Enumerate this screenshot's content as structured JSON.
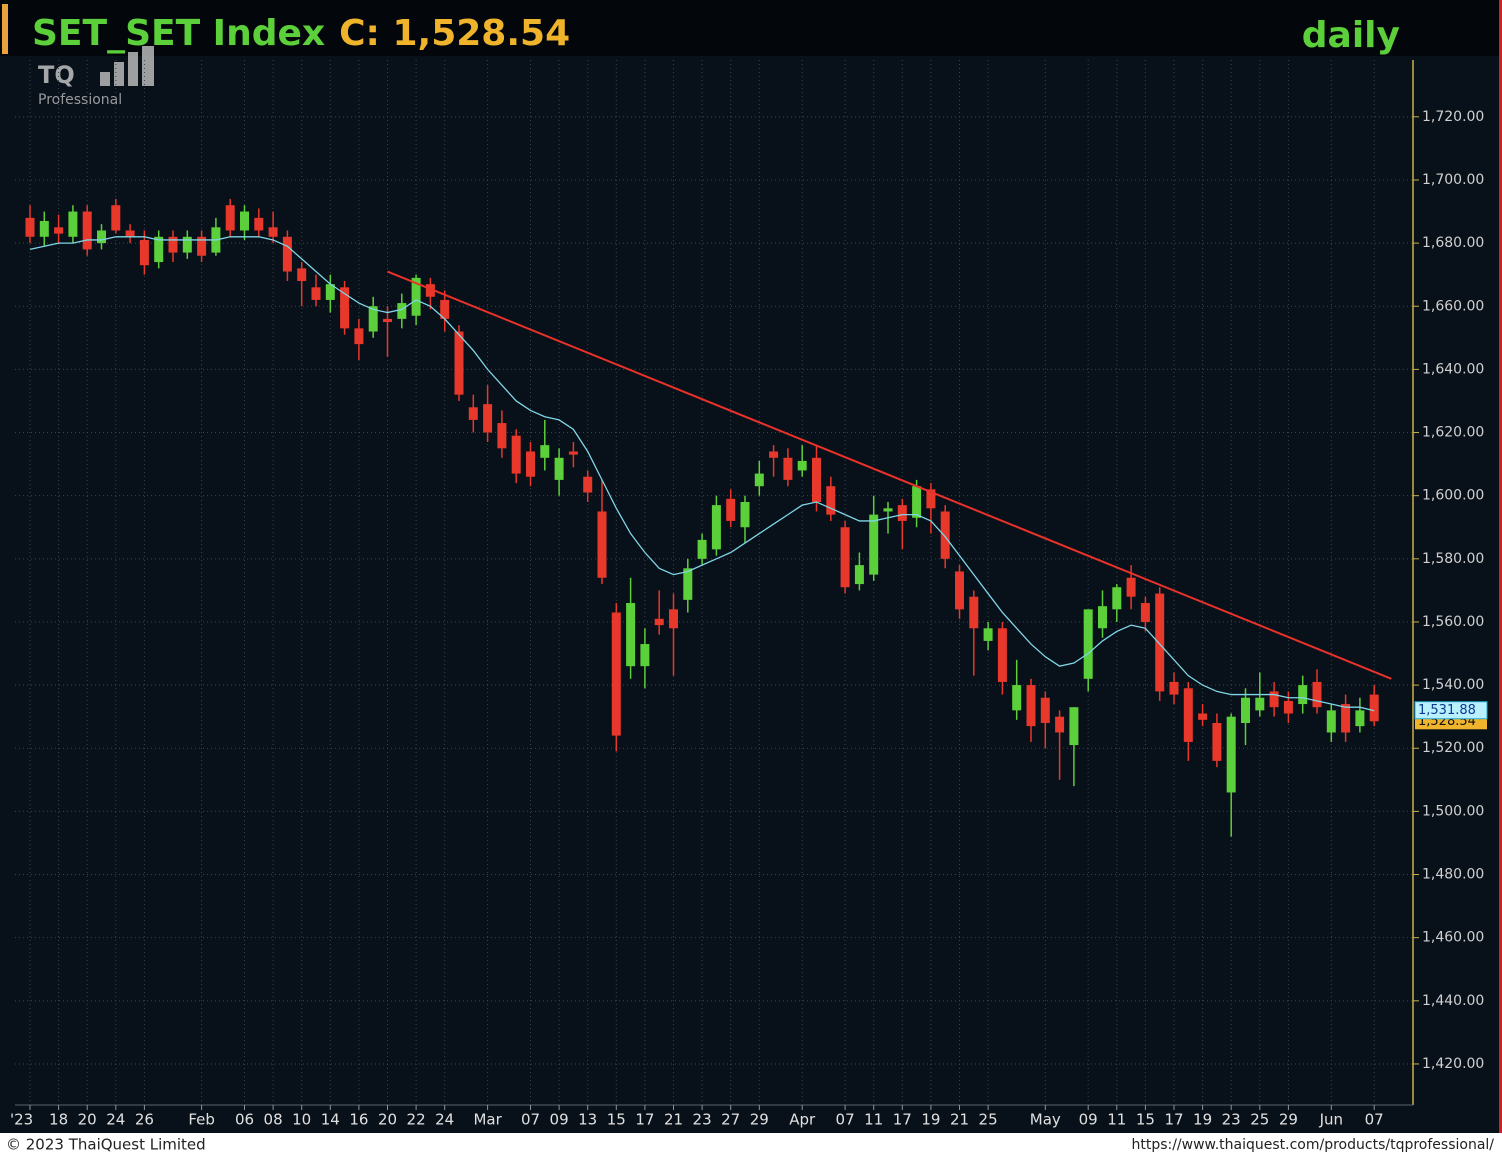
{
  "chart_data": {
    "type": "candlestick",
    "title": "SET_SET Index",
    "title_close": "C: 1,528.54",
    "period": "daily",
    "logo": {
      "mark": "TQ",
      "sub": "Professional"
    },
    "footer_left": "© 2023 ThaiQuest Limited",
    "footer_right": "https://www.thaiquest.com/products/tqprofessional/",
    "categories": [
      "'23",
      null,
      "18",
      null,
      "20",
      null,
      "24",
      null,
      "26",
      null,
      null,
      null,
      "Feb",
      null,
      null,
      "06",
      null,
      "08",
      null,
      "10",
      null,
      "14",
      null,
      "16",
      null,
      "20",
      null,
      "22",
      null,
      "24",
      null,
      null,
      "Mar",
      null,
      null,
      "07",
      null,
      "09",
      null,
      "13",
      null,
      "15",
      null,
      "17",
      null,
      "21",
      null,
      "23",
      null,
      "27",
      null,
      "29",
      null,
      null,
      "Apr",
      null,
      null,
      "07",
      null,
      "11",
      null,
      "17",
      null,
      "19",
      null,
      "21",
      null,
      "25",
      null,
      null,
      null,
      "May",
      null,
      null,
      "09",
      null,
      "11",
      null,
      "15",
      null,
      "17",
      null,
      "19",
      null,
      "23",
      null,
      "25",
      null,
      "29",
      null,
      null,
      "Jun",
      null,
      null,
      "07"
    ],
    "open": [
      1688,
      1682,
      1685,
      1682,
      1690,
      1680,
      1692,
      1684,
      1681,
      1674,
      1682,
      1677,
      1682,
      1677,
      1692,
      1684,
      1688,
      1685,
      1682,
      1672,
      1666,
      1662,
      1666,
      1653,
      1652,
      1656,
      1656,
      1657,
      1667,
      1662,
      1652,
      1628,
      1629,
      1623,
      1619,
      1614,
      1612,
      1605,
      1614,
      1606,
      1595,
      1563,
      1546,
      1546,
      1561,
      1564,
      1567,
      1580,
      1583,
      1599,
      1590,
      1603,
      1614,
      1612,
      1608,
      1612,
      1603,
      1590,
      1572,
      1575,
      1595,
      1597,
      1593,
      1602,
      1595,
      1576,
      1568,
      1554,
      1558,
      1532,
      1540,
      1536,
      1530,
      1521,
      1542,
      1558,
      1564,
      1574,
      1566,
      1569,
      1541,
      1539,
      1531,
      1528,
      1506,
      1528,
      1532,
      1538,
      1535,
      1534,
      1541,
      1525,
      1534,
      1527,
      1537
    ],
    "high": [
      1692,
      1690,
      1689,
      1692,
      1692,
      1686,
      1694,
      1686,
      1684,
      1684,
      1684,
      1684,
      1684,
      1688,
      1694,
      1692,
      1691,
      1690,
      1684,
      1674,
      1670,
      1670,
      1668,
      1656,
      1663,
      1660,
      1664,
      1670,
      1669,
      1665,
      1654,
      1632,
      1635,
      1627,
      1621,
      1617,
      1624,
      1615,
      1617,
      1608,
      1605,
      1566,
      1574,
      1558,
      1570,
      1569,
      1580,
      1588,
      1600,
      1602,
      1600,
      1611,
      1616,
      1615,
      1616,
      1616,
      1606,
      1592,
      1582,
      1600,
      1598,
      1599,
      1605,
      1604,
      1597,
      1578,
      1570,
      1560,
      1560,
      1548,
      1542,
      1538,
      1532,
      1533,
      1564,
      1570,
      1572,
      1578,
      1568,
      1571,
      1544,
      1541,
      1534,
      1531,
      1531,
      1539,
      1544,
      1541,
      1538,
      1543,
      1545,
      1534,
      1537,
      1536,
      1540
    ],
    "low": [
      1680,
      1679,
      1680,
      1680,
      1676,
      1678,
      1683,
      1680,
      1670,
      1672,
      1674,
      1675,
      1674,
      1676,
      1682,
      1681,
      1682,
      1680,
      1668,
      1660,
      1660,
      1658,
      1651,
      1643,
      1650,
      1644,
      1653,
      1654,
      1659,
      1652,
      1630,
      1620,
      1617,
      1612,
      1604,
      1603,
      1608,
      1600,
      1609,
      1598,
      1572,
      1519,
      1542,
      1539,
      1556,
      1543,
      1563,
      1578,
      1581,
      1590,
      1585,
      1600,
      1606,
      1603,
      1606,
      1595,
      1592,
      1569,
      1570,
      1573,
      1588,
      1583,
      1590,
      1588,
      1577,
      1561,
      1543,
      1551,
      1537,
      1529,
      1522,
      1520,
      1510,
      1508,
      1538,
      1555,
      1560,
      1564,
      1557,
      1535,
      1534,
      1516,
      1527,
      1514,
      1492,
      1521,
      1530,
      1530,
      1528,
      1531,
      1531,
      1522,
      1522,
      1525,
      1527
    ],
    "close": [
      1682,
      1687,
      1683,
      1690,
      1678,
      1684,
      1684,
      1682,
      1673,
      1682,
      1677,
      1682,
      1676,
      1685,
      1684,
      1690,
      1684,
      1682,
      1671,
      1668,
      1662,
      1667,
      1653,
      1648,
      1660,
      1655,
      1661,
      1669,
      1663,
      1656,
      1632,
      1624,
      1620,
      1615,
      1607,
      1606,
      1616,
      1612,
      1613,
      1601,
      1574,
      1524,
      1566,
      1553,
      1559,
      1558,
      1577,
      1586,
      1597,
      1592,
      1598,
      1607,
      1612,
      1605,
      1611,
      1598,
      1594,
      1571,
      1578,
      1594,
      1596,
      1592,
      1603,
      1596,
      1580,
      1564,
      1558,
      1558,
      1541,
      1540,
      1527,
      1528,
      1525,
      1533,
      1564,
      1565,
      1571,
      1568,
      1560,
      1538,
      1537,
      1522,
      1529,
      1516,
      1530,
      1536,
      1536,
      1533,
      1531,
      1540,
      1533,
      1532,
      1525,
      1532,
      1528.54
    ],
    "close_label": "1,528.54",
    "ma": [
      1678,
      1679,
      1680,
      1680,
      1681,
      1681,
      1682,
      1682,
      1682,
      1681,
      1681,
      1681,
      1681,
      1681,
      1682,
      1682,
      1682,
      1681,
      1679,
      1675,
      1671,
      1667,
      1664,
      1661,
      1659,
      1658,
      1659,
      1662,
      1660,
      1656,
      1651,
      1646,
      1640,
      1635,
      1630,
      1627,
      1625,
      1624,
      1621,
      1614,
      1605,
      1596,
      1588,
      1582,
      1577,
      1575,
      1576,
      1578,
      1580,
      1582,
      1585,
      1588,
      1591,
      1594,
      1597,
      1598,
      1596,
      1594,
      1592,
      1592,
      1593,
      1594,
      1594,
      1592,
      1587,
      1581,
      1575,
      1569,
      1563,
      1558,
      1553,
      1549,
      1546,
      1547,
      1550,
      1554,
      1557,
      1559,
      1558,
      1553,
      1548,
      1543,
      1540,
      1538,
      1537,
      1537,
      1537,
      1537,
      1536,
      1536,
      1535,
      1534,
      1533,
      1533,
      1531.88
    ],
    "ma_label": "1,531.88",
    "trendline": {
      "x": [
        25,
        95.2
      ],
      "y": [
        1671,
        1542
      ]
    },
    "up_color": "#5cd03a",
    "down_color": "#e8372b",
    "ma_color": "#7fd6e6",
    "trend_color": "#e8322a",
    "ylim": [
      1407,
      1738
    ],
    "yticks": [
      {
        "value": 1420,
        "label": "1,420.00"
      },
      {
        "value": 1440,
        "label": "1,440.00"
      },
      {
        "value": 1460,
        "label": "1,460.00"
      },
      {
        "value": 1480,
        "label": "1,480.00"
      },
      {
        "value": 1500,
        "label": "1,500.00"
      },
      {
        "value": 1520,
        "label": "1,520.00"
      },
      {
        "value": 1540,
        "label": "1,540.00"
      },
      {
        "value": 1560,
        "label": "1,560.00"
      },
      {
        "value": 1580,
        "label": "1,580.00"
      },
      {
        "value": 1600,
        "label": "1,600.00"
      },
      {
        "value": 1620,
        "label": "1,620.00"
      },
      {
        "value": 1640,
        "label": "1,640.00"
      },
      {
        "value": 1660,
        "label": "1,660.00"
      },
      {
        "value": 1680,
        "label": "1,680.00"
      },
      {
        "value": 1700,
        "label": "1,700.00"
      },
      {
        "value": 1720,
        "label": "1,720.00"
      }
    ],
    "grid": true
  }
}
